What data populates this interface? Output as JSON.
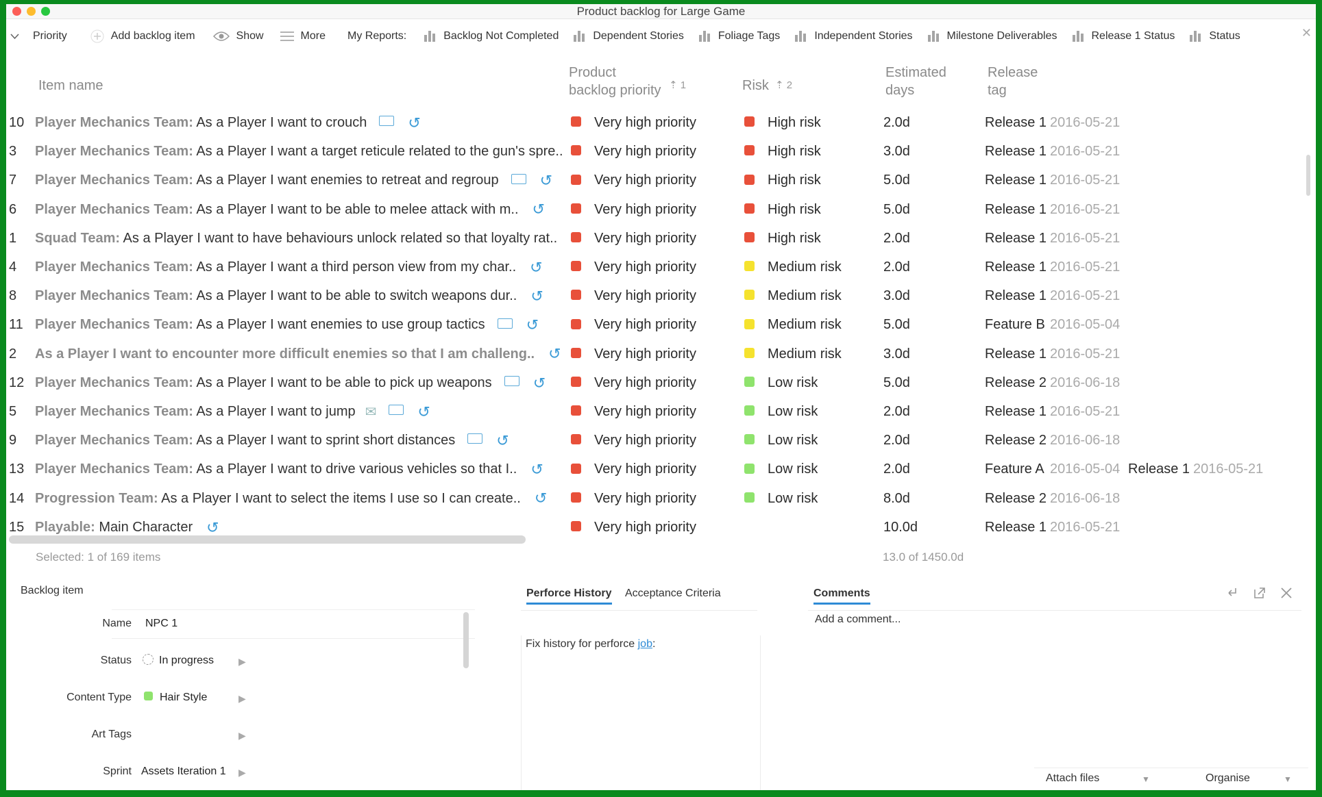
{
  "window": {
    "title": "Product backlog for Large Game"
  },
  "toolbar": {
    "priority": "Priority",
    "add_backlog_item": "Add backlog item",
    "show": "Show",
    "more": "More",
    "my_reports": "My Reports:",
    "reports": [
      "Backlog Not Completed",
      "Dependent Stories",
      "Foliage Tags",
      "Independent Stories",
      "Milestone Deliverables",
      "Release 1 Status",
      "Status"
    ]
  },
  "columns": {
    "item_name": "Item name",
    "priority_l1": "Product",
    "priority_l2": "backlog priority",
    "priority_sort": "⇡ 1",
    "risk": "Risk",
    "risk_sort": "⇡ 2",
    "days_l1": "Estimated",
    "days_l2": "days",
    "release_l1": "Release",
    "release_l2": "tag"
  },
  "colors": {
    "red": "#e8503a",
    "yellow": "#f5e22e",
    "green": "#8fe36d",
    "accent": "#2e8bd6"
  },
  "rows": [
    {
      "num": "10",
      "team": "Player Mechanics Team:",
      "text": " As a Player I want to crouch",
      "icons": [
        "note",
        "link"
      ],
      "priority": "Very high priority",
      "risk": "High risk",
      "risk_color": "red",
      "days": "2.0d",
      "release": "Release 1",
      "date": "2016-05-21"
    },
    {
      "num": "3",
      "team": "Player Mechanics Team:",
      "text": " As a Player I want a target reticule related to the gun's spre..",
      "icons": [],
      "priority": "Very high priority",
      "risk": "High risk",
      "risk_color": "red",
      "days": "3.0d",
      "release": "Release 1",
      "date": "2016-05-21"
    },
    {
      "num": "7",
      "team": "Player Mechanics Team:",
      "text": " As a Player I want enemies to retreat and regroup",
      "icons": [
        "note",
        "link"
      ],
      "priority": "Very high priority",
      "risk": "High risk",
      "risk_color": "red",
      "days": "5.0d",
      "release": "Release 1",
      "date": "2016-05-21"
    },
    {
      "num": "6",
      "team": "Player Mechanics Team:",
      "text": " As a Player I want to be able to melee attack with m..",
      "icons": [
        "link"
      ],
      "priority": "Very high priority",
      "risk": "High risk",
      "risk_color": "red",
      "days": "5.0d",
      "release": "Release 1",
      "date": "2016-05-21"
    },
    {
      "num": "1",
      "team": "Squad Team:",
      "text": " As a Player I want to have behaviours unlock related so that loyalty rat..",
      "icons": [],
      "priority": "Very high priority",
      "risk": "High risk",
      "risk_color": "red",
      "days": "2.0d",
      "release": "Release 1",
      "date": "2016-05-21"
    },
    {
      "num": "4",
      "team": "Player Mechanics Team:",
      "text": " As a Player I want a third person view from my char..",
      "icons": [
        "link"
      ],
      "priority": "Very high priority",
      "risk": "Medium risk",
      "risk_color": "yellow",
      "days": "2.0d",
      "release": "Release 1",
      "date": "2016-05-21"
    },
    {
      "num": "8",
      "team": "Player Mechanics Team:",
      "text": " As a Player I want to be able to switch weapons dur..",
      "icons": [
        "link"
      ],
      "priority": "Very high priority",
      "risk": "Medium risk",
      "risk_color": "yellow",
      "days": "3.0d",
      "release": "Release 1",
      "date": "2016-05-21"
    },
    {
      "num": "11",
      "team": "Player Mechanics Team:",
      "text": " As a Player I want enemies to use group tactics",
      "icons": [
        "note",
        "link"
      ],
      "priority": "Very high priority",
      "risk": "Medium risk",
      "risk_color": "yellow",
      "days": "5.0d",
      "release": "Feature B",
      "date": "2016-05-04"
    },
    {
      "num": "2",
      "team": "As a Player I want to encounter more difficult enemies so that I am challeng..",
      "text": "",
      "icons": [
        "link"
      ],
      "priority": "Very high priority",
      "risk": "Medium risk",
      "risk_color": "yellow",
      "days": "3.0d",
      "release": "Release 1",
      "date": "2016-05-21"
    },
    {
      "num": "12",
      "team": "Player Mechanics Team:",
      "text": " As a Player I want to be able to pick up weapons",
      "icons": [
        "note",
        "link"
      ],
      "priority": "Very high priority",
      "risk": "Low risk",
      "risk_color": "green",
      "days": "5.0d",
      "release": "Release 2",
      "date": "2016-06-18"
    },
    {
      "num": "5",
      "team": "Player Mechanics Team:",
      "text": " As a Player I want to jump",
      "icons": [
        "mail",
        "note",
        "link"
      ],
      "priority": "Very high priority",
      "risk": "Low risk",
      "risk_color": "green",
      "days": "2.0d",
      "release": "Release 1",
      "date": "2016-05-21"
    },
    {
      "num": "9",
      "team": "Player Mechanics Team:",
      "text": " As a Player I want to sprint short distances",
      "icons": [
        "note",
        "link"
      ],
      "priority": "Very high priority",
      "risk": "Low risk",
      "risk_color": "green",
      "days": "2.0d",
      "release": "Release 2",
      "date": "2016-06-18"
    },
    {
      "num": "13",
      "team": "Player Mechanics Team:",
      "text": " As a Player I want to drive various vehicles so that I..",
      "icons": [
        "link"
      ],
      "priority": "Very high priority",
      "risk": "Low risk",
      "risk_color": "green",
      "days": "2.0d",
      "release": "Feature A",
      "date": "2016-05-04",
      "release2": "Release 1",
      "date2": "2016-05-21"
    },
    {
      "num": "14",
      "team": "Progression Team:",
      "text": " As a Player I want to select the items I use so I can create..",
      "icons": [
        "link"
      ],
      "priority": "Very high priority",
      "risk": "Low risk",
      "risk_color": "green",
      "days": "8.0d",
      "release": "Release 2",
      "date": "2016-06-18"
    },
    {
      "num": "15",
      "team": "Playable:",
      "text": " Main Character",
      "icons": [
        "link"
      ],
      "priority": "Very high priority",
      "risk": "",
      "risk_color": "",
      "days": "10.0d",
      "release": "Release 1",
      "date": "2016-05-21"
    }
  ],
  "footer": {
    "selected": "Selected: 1 of 169 items",
    "days_total": "13.0 of 1450.0d"
  },
  "detail": {
    "title": "Backlog item",
    "name_label": "Name",
    "name_value": "NPC 1",
    "status_label": "Status",
    "status_value": "In progress",
    "content_type_label": "Content Type",
    "content_type_value": "Hair Style",
    "art_tags_label": "Art Tags",
    "sprint_label": "Sprint",
    "sprint_value": "Assets Iteration 1"
  },
  "history": {
    "tab1": "Perforce History",
    "tab2": "Acceptance Criteria",
    "text": "Fix history for perforce ",
    "link": "job",
    "colon": ":"
  },
  "comments": {
    "tab": "Comments",
    "placeholder": "Add a comment...",
    "attach": "Attach files",
    "organise": "Organise"
  }
}
